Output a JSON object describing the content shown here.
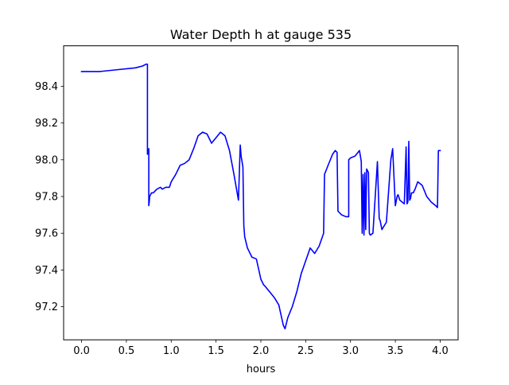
{
  "chart_data": {
    "type": "line",
    "title": "Water Depth h at gauge 535",
    "xlabel": "hours",
    "ylabel": "",
    "xlim": [
      -0.2,
      4.2
    ],
    "ylim": [
      97.02,
      98.62
    ],
    "xticks": [
      0.0,
      0.5,
      1.0,
      1.5,
      2.0,
      2.5,
      3.0,
      3.5,
      4.0
    ],
    "xtick_labels": [
      "0.0",
      "0.5",
      "1.0",
      "1.5",
      "2.0",
      "2.5",
      "3.0",
      "3.5",
      "4.0"
    ],
    "yticks": [
      97.2,
      97.4,
      97.6,
      97.8,
      98.0,
      98.2,
      98.4
    ],
    "ytick_labels": [
      "97.2",
      "97.4",
      "97.6",
      "97.8",
      "98.0",
      "98.2",
      "98.4"
    ],
    "grid": false,
    "legend": "none",
    "series": [
      {
        "color": "#0000ff",
        "x": [
          0.0,
          0.2,
          0.4,
          0.6,
          0.68,
          0.72,
          0.735,
          0.735,
          0.75,
          0.75,
          0.755,
          0.76,
          0.78,
          0.8,
          0.84,
          0.88,
          0.9,
          0.94,
          0.98,
          1.0,
          1.05,
          1.1,
          1.15,
          1.2,
          1.25,
          1.3,
          1.35,
          1.4,
          1.45,
          1.5,
          1.55,
          1.6,
          1.65,
          1.7,
          1.75,
          1.77,
          1.78,
          1.8,
          1.81,
          1.82,
          1.85,
          1.9,
          1.95,
          2.0,
          2.03,
          2.05,
          2.1,
          2.15,
          2.2,
          2.25,
          2.27,
          2.3,
          2.35,
          2.4,
          2.45,
          2.5,
          2.55,
          2.6,
          2.65,
          2.7,
          2.71,
          2.75,
          2.8,
          2.83,
          2.85,
          2.86,
          2.9,
          2.95,
          2.97,
          2.98,
          2.98,
          3.0,
          3.05,
          3.1,
          3.12,
          3.13,
          3.14,
          3.15,
          3.16,
          3.17,
          3.18,
          3.2,
          3.21,
          3.22,
          3.25,
          3.3,
          3.32,
          3.33,
          3.35,
          3.4,
          3.45,
          3.47,
          3.5,
          3.52,
          3.53,
          3.55,
          3.6,
          3.62,
          3.63,
          3.64,
          3.65,
          3.66,
          3.67,
          3.68,
          3.7,
          3.72,
          3.75,
          3.8,
          3.85,
          3.9,
          3.95,
          3.97,
          3.98,
          3.98,
          4.0
        ],
        "y": [
          98.48,
          98.48,
          98.49,
          98.5,
          98.51,
          98.52,
          98.52,
          98.03,
          98.06,
          97.75,
          97.77,
          97.8,
          97.82,
          97.82,
          97.84,
          97.85,
          97.84,
          97.85,
          97.85,
          97.88,
          97.92,
          97.97,
          97.98,
          98.0,
          98.06,
          98.13,
          98.15,
          98.14,
          98.09,
          98.12,
          98.15,
          98.13,
          98.05,
          97.92,
          97.78,
          98.08,
          98.02,
          97.96,
          97.64,
          97.58,
          97.52,
          97.47,
          97.46,
          97.35,
          97.32,
          97.31,
          97.28,
          97.25,
          97.21,
          97.1,
          97.08,
          97.14,
          97.2,
          97.28,
          97.38,
          97.45,
          97.52,
          97.49,
          97.53,
          97.6,
          97.92,
          97.97,
          98.03,
          98.05,
          98.04,
          97.72,
          97.7,
          97.69,
          97.69,
          97.69,
          98.0,
          98.01,
          98.02,
          98.05,
          97.99,
          97.6,
          97.92,
          97.59,
          97.93,
          97.62,
          97.95,
          97.93,
          97.6,
          97.59,
          97.6,
          97.99,
          97.68,
          97.67,
          97.62,
          97.66,
          98.0,
          98.06,
          97.75,
          97.8,
          97.81,
          97.78,
          97.76,
          98.07,
          97.76,
          97.77,
          98.1,
          97.78,
          97.79,
          97.82,
          97.82,
          97.84,
          97.88,
          97.86,
          97.8,
          97.77,
          97.75,
          97.74,
          98.05,
          98.05,
          98.05
        ]
      }
    ]
  }
}
